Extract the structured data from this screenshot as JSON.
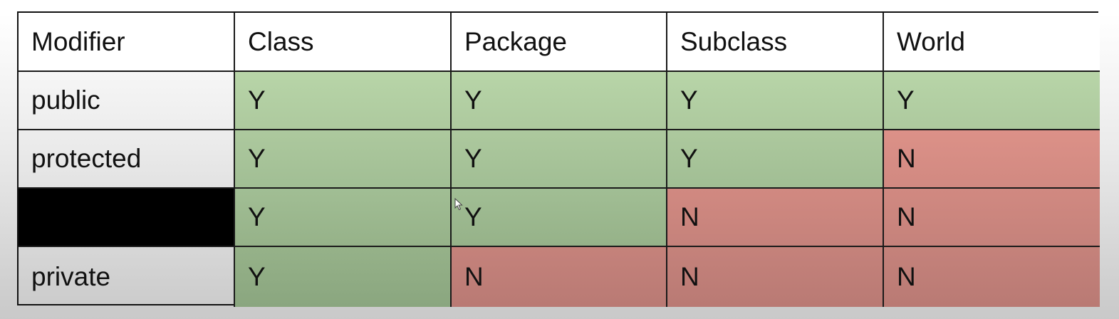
{
  "table": {
    "columns": [
      "Modifier",
      "Class",
      "Package",
      "Subclass",
      "World"
    ],
    "rows": [
      {
        "modifier": "public",
        "redacted": false,
        "values": [
          "Y",
          "Y",
          "Y",
          "Y"
        ]
      },
      {
        "modifier": "protected",
        "redacted": false,
        "values": [
          "Y",
          "Y",
          "Y",
          "N"
        ]
      },
      {
        "modifier": "",
        "redacted": true,
        "values": [
          "Y",
          "Y",
          "N",
          "N"
        ]
      },
      {
        "modifier": "private",
        "redacted": false,
        "values": [
          "Y",
          "N",
          "N",
          "N"
        ]
      }
    ]
  },
  "colors": {
    "yes_top": "#b8d5a8",
    "yes_bottom": "#8aa67f",
    "no_top": "#e8988e",
    "no_bottom": "#b97a74",
    "redacted": "#000000",
    "border": "#1a1a1a"
  },
  "cursor": {
    "icon": "mouse-pointer-icon"
  }
}
